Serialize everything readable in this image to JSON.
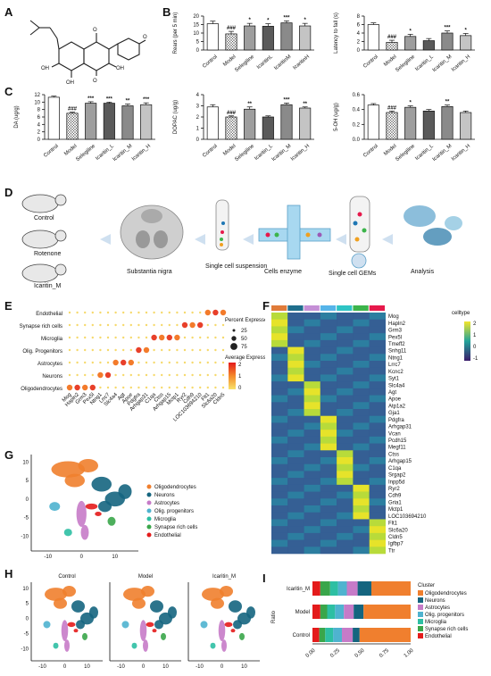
{
  "panels": {
    "A": "A",
    "B": "B",
    "C": "C",
    "D": "D",
    "E": "E",
    "F": "F",
    "G": "G",
    "H": "H",
    "I": "I"
  },
  "panel_A": {
    "atoms": [
      "O",
      "O",
      "OH",
      "OH",
      "O"
    ],
    "description_color": "#222222"
  },
  "panel_B": [
    {
      "ylabel": "Rears (per 5 min)",
      "ylim": [
        0,
        20
      ],
      "yticks": [
        "0",
        "5",
        "10",
        "15",
        "20"
      ],
      "categories": [
        "Control",
        "Model",
        "Selegiline",
        "IcaritinL",
        "IcaritinM",
        "IcaritinH"
      ],
      "values": [
        15.5,
        9.5,
        14.2,
        14.0,
        16.0,
        14.2
      ],
      "errors": [
        1.5,
        1.5,
        1.5,
        1.5,
        1.2,
        1.5
      ],
      "sig": [
        "",
        "###",
        "*",
        "*",
        "***",
        "*"
      ]
    },
    {
      "ylabel": "Latency to fall (s)",
      "ylim": [
        0,
        8
      ],
      "yticks": [
        "0",
        "2",
        "4",
        "6",
        "8"
      ],
      "categories": [
        "Control",
        "Model",
        "Selegiline",
        "Icaritin_L",
        "Icaritin_M",
        "Icaritin_H"
      ],
      "values": [
        6.0,
        1.8,
        3.2,
        2.2,
        4.0,
        3.4
      ],
      "errors": [
        0.4,
        0.5,
        0.5,
        0.5,
        0.5,
        0.5
      ],
      "sig": [
        "",
        "###",
        "*",
        "",
        "***",
        "*"
      ]
    }
  ],
  "panel_C": [
    {
      "ylabel": "DA (ug/g)",
      "ylim": [
        0,
        12
      ],
      "yticks": [
        "0",
        "2",
        "4",
        "6",
        "8",
        "10",
        "12"
      ],
      "categories": [
        "Control",
        "Model",
        "Selegiline",
        "Icaritin_L",
        "Icaritin_M",
        "Icaritin_H"
      ],
      "values": [
        11.3,
        7.0,
        9.7,
        9.7,
        9.0,
        9.3
      ],
      "errors": [
        0.3,
        0.3,
        0.4,
        0.3,
        0.5,
        0.5
      ],
      "sig": [
        "",
        "###",
        "***",
        "***",
        "**",
        "***"
      ]
    },
    {
      "ylabel": "DOPAC (ug/g)",
      "ylim": [
        0,
        4
      ],
      "yticks": [
        "0",
        "1",
        "2",
        "3",
        "4"
      ],
      "categories": [
        "Control",
        "Model",
        "Selegiline",
        "Icaritin_L",
        "Icaritin_M",
        "Icaritin_H"
      ],
      "values": [
        2.9,
        2.0,
        2.7,
        2.0,
        3.1,
        2.8
      ],
      "errors": [
        0.2,
        0.1,
        0.2,
        0.1,
        0.15,
        0.1
      ],
      "sig": [
        "",
        "###",
        "**",
        "",
        "***",
        "**"
      ]
    },
    {
      "ylabel": "5-OH (ug/g)",
      "ylim": [
        0,
        0.6
      ],
      "yticks": [
        "0.0",
        "0.2",
        "0.4",
        "0.6"
      ],
      "categories": [
        "Control",
        "Model",
        "Selegiline",
        "Icaritin_L",
        "Icaritin_M",
        "Icaritin_H"
      ],
      "values": [
        0.46,
        0.36,
        0.43,
        0.38,
        0.44,
        0.36
      ],
      "errors": [
        0.02,
        0.02,
        0.02,
        0.02,
        0.02,
        0.02
      ],
      "sig": [
        "",
        "###",
        "*",
        "",
        "**",
        ""
      ]
    }
  ],
  "panel_D": {
    "groups": [
      "Control",
      "Rotenone",
      "Icaritin_M"
    ],
    "steps": [
      "Substantia nigra",
      "Single cell suspension",
      "Cells enzyme",
      "Single cell GEMs",
      "Analysis"
    ]
  },
  "panel_E": {
    "celltypes": [
      "Endothelial",
      "Synapse rich cells",
      "Microglia",
      "Olig. Progenitors",
      "Astrocytes",
      "Neurons",
      "Oligodendrocytes"
    ],
    "genes": [
      "Mog",
      "Hapln2",
      "Grm3",
      "Pex5l",
      "Ntng1",
      "Lrrc7",
      "Slc4a4",
      "Agt",
      "Apoe",
      "Pdgfra",
      "Arhgap31",
      "C1qa",
      "Ctss",
      "Arhgap15",
      "Mctp1",
      "Ryr2",
      "Cdh9",
      "LOC103694210",
      "Flt1",
      "Slc6a20",
      "Cldn5"
    ],
    "legend_pct_title": "Percent Expressed",
    "legend_pct": [
      "25",
      "50",
      "75"
    ],
    "legend_expr_title": "Average Expression",
    "legend_expr": [
      "2",
      "1",
      "0"
    ]
  },
  "panel_F": {
    "celltype_title": "celltype",
    "scale": [
      "2",
      "1",
      "0",
      "-1"
    ],
    "genes": [
      "Mog",
      "Hapln2",
      "Grm3",
      "Pex5l",
      "Tmeff2",
      "Snhg11",
      "Ntng1",
      "Lrrc7",
      "Kcnc2",
      "Syt1",
      "Slc4a4",
      "Agt",
      "Apoe",
      "Atp1a2",
      "Gja1",
      "Pdgfra",
      "Arhgap31",
      "Vcan",
      "Pcdh15",
      "Megf11",
      "Ctss",
      "Arhgap15",
      "C1qa",
      "Srgap2",
      "Inpp5d",
      "Ryr2",
      "Cdh9",
      "Gria1",
      "Mctp1",
      "LOC103694210",
      "Flt1",
      "Slc6a20",
      "Cldn5",
      "Igfbp7",
      "Ttr"
    ],
    "colors": [
      "#e07b39",
      "#1f6e8c",
      "#c58fd6",
      "#56b4e9",
      "#2ec4c4",
      "#3cb44b",
      "#e6194b"
    ]
  },
  "panel_G": {
    "xticks": [
      "-10",
      "0",
      "10"
    ],
    "yticks": [
      "10",
      "5",
      "0",
      "-5",
      "-10"
    ],
    "legend": [
      "Oligodendrocytes",
      "Neurons",
      "Astrocytes",
      "Olig. progenitors",
      "Microglia",
      "Synapse rich cells",
      "Endothelial"
    ],
    "colors": [
      "#f07f2e",
      "#15657f",
      "#c67bc8",
      "#4fb3cf",
      "#2dbfa3",
      "#3aa64a",
      "#e41b1b"
    ]
  },
  "panel_H": {
    "titles": [
      "Control",
      "Model",
      "Icaritin_M"
    ],
    "xticks": [
      "-10",
      "0",
      "10"
    ],
    "yticks": [
      "10",
      "5",
      "0",
      "-5",
      "-10"
    ]
  },
  "panel_I": {
    "ylabel": "Ratio",
    "categories": [
      "Icaritin_M",
      "Model",
      "Control"
    ],
    "xticks": [
      "0.00",
      "0.25",
      "0.50",
      "0.75",
      "1.00"
    ],
    "legend_title": "Cluster",
    "legend": [
      "Oligodendrocytes",
      "Neurons",
      "Astrocytes",
      "Olig. progenitors",
      "Microglia",
      "Synapse rich cells",
      "Endothelial"
    ]
  }
}
